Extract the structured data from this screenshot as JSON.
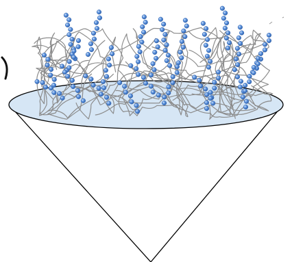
{
  "colors": {
    "background": "#ffffff",
    "cone_outline": "#000000",
    "surface_fill": "#d6e6f5",
    "surface_outline": "#000000",
    "coil_stroke": "#8c8c8c",
    "bead_fill": "#4a86d8",
    "bead_highlight": "#a9c9f2",
    "bead_outline": "#2f5fa8"
  },
  "elements": {
    "cone": "cone-shape",
    "surface": "elliptical-surface",
    "coils": "polymer-coil-tangle",
    "chains": "bead-chain-brushes"
  }
}
